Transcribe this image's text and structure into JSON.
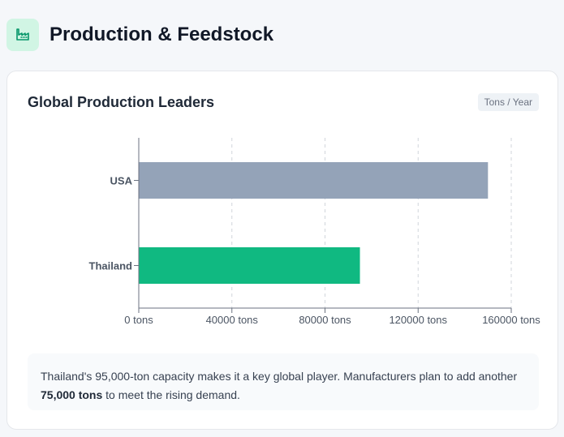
{
  "header": {
    "title": "Production & Feedstock",
    "icon": "factory-icon"
  },
  "card": {
    "title": "Global Production Leaders",
    "unit_badge": "Tons / Year"
  },
  "chart_data": {
    "type": "bar",
    "orientation": "horizontal",
    "categories": [
      "USA",
      "Thailand"
    ],
    "values": [
      150000,
      95000
    ],
    "colors": [
      "#94a3b8",
      "#10b981"
    ],
    "xlim": [
      0,
      160000
    ],
    "xticks": [
      0,
      40000,
      80000,
      120000,
      160000
    ],
    "tick_suffix": " tons",
    "grid": "vertical-dashed"
  },
  "note": {
    "text_before": "Thailand's 95,000-ton capacity makes it a key global player. Manufacturers plan to add another ",
    "bold": "75,000 tons",
    "text_after": " to meet the rising demand."
  }
}
